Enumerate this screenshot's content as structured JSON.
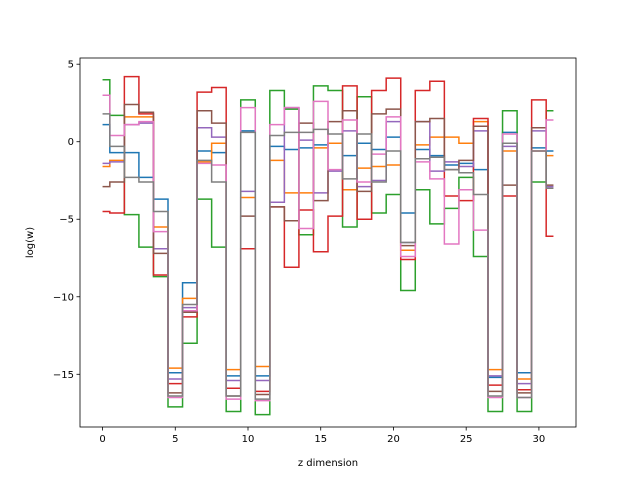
{
  "chart_data": {
    "type": "line",
    "drawstyle": "steps-mid",
    "title": "",
    "xlabel": "z dimension",
    "ylabel": "log(w)",
    "xlim": [
      -1.55,
      32.55
    ],
    "ylim": [
      -18.4,
      5.4
    ],
    "xticks": [
      0,
      5,
      10,
      15,
      20,
      25,
      30
    ],
    "yticks": [
      -15,
      -10,
      -5,
      0,
      5
    ],
    "grid": false,
    "legend": "none",
    "x": [
      0,
      1,
      2,
      3,
      4,
      5,
      6,
      7,
      8,
      9,
      10,
      11,
      12,
      13,
      14,
      15,
      16,
      17,
      18,
      19,
      20,
      21,
      22,
      23,
      24,
      25,
      26,
      27,
      28,
      29,
      30,
      31
    ],
    "series": [
      {
        "color": "#1f77b4",
        "values": [
          1.1,
          -0.7,
          -0.7,
          -2.3,
          -3.7,
          -14.9,
          -9.1,
          -0.6,
          -0.7,
          -15.1,
          0.7,
          -15.1,
          -0.3,
          -0.5,
          -0.4,
          -0.2,
          -0.1,
          -0.9,
          -0.1,
          -0.5,
          0.3,
          -4.6,
          -0.5,
          -0.9,
          -1.5,
          -1.4,
          -1.8,
          -15.2,
          0.6,
          -14.9,
          -0.4,
          -0.6
        ]
      },
      {
        "color": "#ff7f0e",
        "values": [
          -1.6,
          -1.2,
          1.6,
          1.6,
          -5.5,
          -14.6,
          -10.1,
          -1.3,
          -0.1,
          -14.7,
          -3.6,
          -14.5,
          -1.2,
          -3.3,
          -3.3,
          -0.4,
          -0.1,
          -3.1,
          -1.7,
          -1.6,
          -1.5,
          -7.0,
          -0.2,
          0.3,
          0.3,
          -0.1,
          1.3,
          -14.7,
          -0.6,
          -15.3,
          -0.6,
          -0.9
        ]
      },
      {
        "color": "#2ca02c",
        "values": [
          4.0,
          1.7,
          -4.7,
          -6.8,
          -8.7,
          -17.1,
          -13.0,
          -3.7,
          -6.8,
          -17.4,
          2.7,
          -17.6,
          3.3,
          2.1,
          -6.0,
          3.6,
          3.3,
          -5.5,
          2.9,
          -4.6,
          -3.4,
          -9.6,
          -3.1,
          -5.3,
          -4.3,
          -2.3,
          -7.4,
          -17.4,
          2.0,
          -17.4,
          -2.6,
          2.0
        ]
      },
      {
        "color": "#d62728",
        "values": [
          -4.5,
          -4.6,
          4.2,
          1.8,
          -8.6,
          -15.6,
          -11.3,
          3.2,
          3.5,
          -15.9,
          -6.9,
          -16.1,
          -4.2,
          -8.1,
          -4.4,
          -7.1,
          -4.8,
          3.6,
          -5.0,
          3.3,
          4.1,
          -7.6,
          3.3,
          3.9,
          -3.5,
          -3.8,
          1.5,
          -15.7,
          -3.5,
          -16.0,
          2.7,
          -6.1
        ]
      },
      {
        "color": "#9467bd",
        "values": [
          -1.4,
          -1.3,
          1.1,
          1.2,
          -6.9,
          -15.3,
          -10.7,
          0.9,
          0.3,
          -15.4,
          -3.2,
          -15.4,
          -3.9,
          2.2,
          0.1,
          -3.3,
          -1.9,
          0.7,
          -2.9,
          -2.5,
          1.3,
          -6.5,
          1.3,
          -1.9,
          -1.3,
          -1.6,
          0.7,
          -15.1,
          -0.3,
          -15.6,
          0.7,
          -2.9
        ]
      },
      {
        "color": "#8c564b",
        "values": [
          -2.9,
          -2.6,
          2.4,
          1.9,
          -7.2,
          -16.2,
          -11.0,
          2.0,
          1.2,
          -16.4,
          -4.8,
          -16.3,
          -4.2,
          -5.1,
          1.2,
          -3.8,
          1.3,
          2.0,
          -3.2,
          1.8,
          2.1,
          -6.7,
          1.3,
          1.5,
          -1.8,
          -1.2,
          1.0,
          -16.1,
          -2.8,
          -16.2,
          0.9,
          -2.8
        ]
      },
      {
        "color": "#e377c2",
        "values": [
          3.0,
          0.4,
          1.1,
          1.3,
          -5.8,
          -16.5,
          -10.9,
          -1.4,
          -1.5,
          -16.6,
          2.2,
          -16.7,
          1.1,
          2.2,
          -5.6,
          2.6,
          -1.8,
          1.4,
          -2.6,
          -0.8,
          1.6,
          -7.4,
          -1.3,
          -2.4,
          -6.6,
          -3.1,
          -5.7,
          -16.5,
          0.5,
          -16.5,
          -0.6,
          1.4
        ]
      },
      {
        "color": "#7f7f7f",
        "values": [
          1.8,
          -0.3,
          -2.3,
          -2.6,
          -4.5,
          -16.4,
          -10.5,
          -1.2,
          -2.6,
          -16.4,
          0.6,
          -16.6,
          0.4,
          0.6,
          0.6,
          0.8,
          0.5,
          -2.4,
          0.5,
          -2.6,
          -0.6,
          -6.5,
          -1.1,
          -1.0,
          -1.8,
          -2.0,
          -3.4,
          -16.4,
          -0.1,
          -16.5,
          -0.6,
          -3.0
        ]
      }
    ]
  }
}
